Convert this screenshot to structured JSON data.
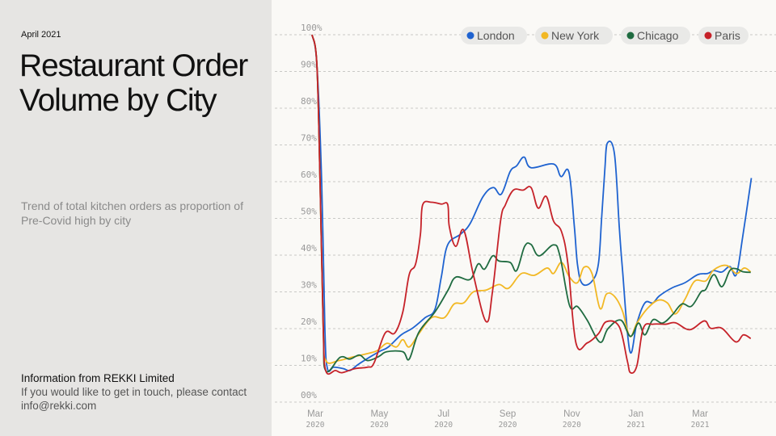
{
  "left": {
    "date": "April 2021",
    "title": "Restaurant Order Volume by City",
    "subtitle": "Trend of total kitchen orders as proportion of Pre-Covid high by city",
    "source": "Information from REKKI Limited",
    "contact": "If you would like to get in touch, please contact info@rekki.com"
  },
  "chart_data": {
    "type": "line",
    "title": "Restaurant Order Volume by City",
    "xlabel": "",
    "ylabel": "",
    "x_units": "months since March 2020",
    "ylim": [
      0,
      100
    ],
    "xlim": [
      -0.1,
      13.6
    ],
    "grid": true,
    "legend_position": "top-right",
    "y_ticks": [
      "00%",
      "10%",
      "20%",
      "30%",
      "40%",
      "50%",
      "60%",
      "70%",
      "80%",
      "90%",
      "100%"
    ],
    "x_ticks": [
      {
        "m": 0,
        "month": "Mar",
        "year": "2020"
      },
      {
        "m": 2,
        "month": "May",
        "year": "2020"
      },
      {
        "m": 4,
        "month": "Jul",
        "year": "2020"
      },
      {
        "m": 6,
        "month": "Sep",
        "year": "2020"
      },
      {
        "m": 8,
        "month": "Nov",
        "year": "2020"
      },
      {
        "m": 10,
        "month": "Jan",
        "year": "2021"
      },
      {
        "m": 12,
        "month": "Mar",
        "year": "2021"
      }
    ],
    "series": [
      {
        "name": "London",
        "color": "#1f63d0",
        "points": [
          [
            -0.1,
            100
          ],
          [
            0.05,
            92
          ],
          [
            0.2,
            60
          ],
          [
            0.3,
            20
          ],
          [
            0.38,
            9.1
          ],
          [
            0.58,
            9.5
          ],
          [
            0.88,
            9.1
          ],
          [
            1.08,
            8.6
          ],
          [
            1.33,
            10.2
          ],
          [
            1.73,
            12.4
          ],
          [
            2.03,
            13.9
          ],
          [
            2.28,
            15
          ],
          [
            2.68,
            18.3
          ],
          [
            3.03,
            20.1
          ],
          [
            3.43,
            23
          ],
          [
            3.73,
            25.2
          ],
          [
            3.93,
            34
          ],
          [
            4.13,
            42.8
          ],
          [
            4.53,
            45.7
          ],
          [
            4.83,
            48.6
          ],
          [
            5.23,
            55.9
          ],
          [
            5.55,
            58.4
          ],
          [
            5.8,
            56.6
          ],
          [
            6.08,
            62.8
          ],
          [
            6.28,
            64.3
          ],
          [
            6.51,
            66.7
          ],
          [
            6.73,
            63.8
          ],
          [
            7.43,
            64.8
          ],
          [
            7.66,
            61.4
          ],
          [
            7.91,
            62.6
          ],
          [
            8.08,
            47.8
          ],
          [
            8.18,
            37.3
          ],
          [
            8.33,
            32.2
          ],
          [
            8.63,
            32.9
          ],
          [
            8.83,
            37.6
          ],
          [
            8.93,
            50
          ],
          [
            9.03,
            63.2
          ],
          [
            9.11,
            70.5
          ],
          [
            9.33,
            67.6
          ],
          [
            9.48,
            47.8
          ],
          [
            9.58,
            36.2
          ],
          [
            9.81,
            13.9
          ],
          [
            10.03,
            21.5
          ],
          [
            10.28,
            27
          ],
          [
            10.53,
            27
          ],
          [
            10.73,
            28.9
          ],
          [
            11.13,
            31.1
          ],
          [
            11.53,
            32.5
          ],
          [
            11.93,
            34.7
          ],
          [
            12.23,
            35
          ],
          [
            12.43,
            35.8
          ],
          [
            12.68,
            35.4
          ],
          [
            12.93,
            36.9
          ],
          [
            13.13,
            34.7
          ],
          [
            13.33,
            45
          ],
          [
            13.6,
            61
          ]
        ]
      },
      {
        "name": "New York",
        "color": "#f2b824",
        "points": [
          [
            -0.1,
            100
          ],
          [
            0.05,
            92
          ],
          [
            0.15,
            60
          ],
          [
            0.25,
            20
          ],
          [
            0.33,
            11.3
          ],
          [
            0.73,
            11.3
          ],
          [
            1.13,
            12.2
          ],
          [
            1.53,
            13
          ],
          [
            1.93,
            14
          ],
          [
            2.23,
            16
          ],
          [
            2.53,
            15
          ],
          [
            2.73,
            17
          ],
          [
            2.93,
            15
          ],
          [
            3.23,
            18.6
          ],
          [
            3.63,
            23
          ],
          [
            4.03,
            23
          ],
          [
            4.33,
            26.7
          ],
          [
            4.63,
            27
          ],
          [
            4.93,
            30
          ],
          [
            5.33,
            30.5
          ],
          [
            5.73,
            32
          ],
          [
            6.03,
            31
          ],
          [
            6.43,
            35
          ],
          [
            6.83,
            34.5
          ],
          [
            7.23,
            36.5
          ],
          [
            7.43,
            35
          ],
          [
            7.68,
            38
          ],
          [
            7.93,
            34
          ],
          [
            8.18,
            32.5
          ],
          [
            8.38,
            36.7
          ],
          [
            8.63,
            35
          ],
          [
            8.88,
            25.5
          ],
          [
            9.08,
            29.4
          ],
          [
            9.33,
            28.8
          ],
          [
            9.58,
            24.8
          ],
          [
            9.81,
            17.9
          ],
          [
            10.03,
            21.5
          ],
          [
            10.33,
            25.2
          ],
          [
            10.68,
            27.7
          ],
          [
            10.98,
            27
          ],
          [
            11.23,
            24
          ],
          [
            11.53,
            28
          ],
          [
            11.83,
            32.9
          ],
          [
            12.18,
            33
          ],
          [
            12.43,
            36
          ],
          [
            12.83,
            37.2
          ],
          [
            13.13,
            35
          ],
          [
            13.38,
            36.5
          ],
          [
            13.58,
            35.4
          ]
        ]
      },
      {
        "name": "Chicago",
        "color": "#1f6b40",
        "points": [
          [
            -0.1,
            100
          ],
          [
            0.05,
            92
          ],
          [
            0.15,
            60
          ],
          [
            0.25,
            20
          ],
          [
            0.33,
            8.5
          ],
          [
            0.78,
            12.2
          ],
          [
            1.08,
            11.7
          ],
          [
            1.38,
            12.8
          ],
          [
            1.63,
            11.3
          ],
          [
            1.98,
            12.4
          ],
          [
            2.23,
            13.7
          ],
          [
            2.73,
            13.7
          ],
          [
            2.93,
            11.7
          ],
          [
            3.23,
            19
          ],
          [
            3.73,
            24.5
          ],
          [
            4.13,
            30.3
          ],
          [
            4.38,
            34
          ],
          [
            4.83,
            33.4
          ],
          [
            5.08,
            37.6
          ],
          [
            5.28,
            36.2
          ],
          [
            5.53,
            39.8
          ],
          [
            5.73,
            38.4
          ],
          [
            6.08,
            38
          ],
          [
            6.28,
            35.8
          ],
          [
            6.53,
            42.4
          ],
          [
            6.73,
            42.9
          ],
          [
            6.98,
            39.8
          ],
          [
            7.43,
            42.8
          ],
          [
            7.63,
            39.8
          ],
          [
            7.93,
            26.3
          ],
          [
            8.18,
            26
          ],
          [
            8.48,
            22.3
          ],
          [
            8.88,
            16.3
          ],
          [
            9.13,
            20
          ],
          [
            9.53,
            22.3
          ],
          [
            9.83,
            17.9
          ],
          [
            10.08,
            21.5
          ],
          [
            10.28,
            18.3
          ],
          [
            10.53,
            22.4
          ],
          [
            10.83,
            21.5
          ],
          [
            11.13,
            23.7
          ],
          [
            11.43,
            26.7
          ],
          [
            11.73,
            26.1
          ],
          [
            12.03,
            30
          ],
          [
            12.18,
            30.7
          ],
          [
            12.43,
            34.7
          ],
          [
            12.68,
            31.4
          ],
          [
            12.93,
            35.8
          ],
          [
            13.13,
            36.3
          ],
          [
            13.33,
            35.5
          ],
          [
            13.58,
            35.3
          ]
        ]
      },
      {
        "name": "Paris",
        "color": "#c62229",
        "points": [
          [
            -0.1,
            100
          ],
          [
            0.05,
            92
          ],
          [
            0.15,
            60
          ],
          [
            0.25,
            20
          ],
          [
            0.33,
            8.5
          ],
          [
            0.63,
            8.6
          ],
          [
            0.83,
            8
          ],
          [
            1.23,
            9.1
          ],
          [
            1.63,
            9.5
          ],
          [
            1.83,
            10.6
          ],
          [
            2.18,
            18.8
          ],
          [
            2.48,
            18.8
          ],
          [
            2.73,
            24.5
          ],
          [
            2.93,
            34.7
          ],
          [
            3.13,
            37.6
          ],
          [
            3.28,
            45.7
          ],
          [
            3.35,
            53.7
          ],
          [
            3.63,
            54.4
          ],
          [
            3.93,
            53.9
          ],
          [
            4.13,
            53.8
          ],
          [
            4.18,
            47.8
          ],
          [
            4.38,
            42.4
          ],
          [
            4.63,
            46.8
          ],
          [
            4.93,
            34.7
          ],
          [
            5.33,
            21.9
          ],
          [
            5.53,
            30.3
          ],
          [
            5.78,
            49.4
          ],
          [
            5.93,
            53.7
          ],
          [
            6.18,
            57.7
          ],
          [
            6.48,
            57.7
          ],
          [
            6.73,
            58.4
          ],
          [
            6.95,
            52.8
          ],
          [
            7.2,
            56
          ],
          [
            7.43,
            49.3
          ],
          [
            7.68,
            46.4
          ],
          [
            7.88,
            37.6
          ],
          [
            8.13,
            16.1
          ],
          [
            8.48,
            16.1
          ],
          [
            8.83,
            18.6
          ],
          [
            9.08,
            21.9
          ],
          [
            9.48,
            20.5
          ],
          [
            9.73,
            11.3
          ],
          [
            9.83,
            8
          ],
          [
            10.03,
            9.9
          ],
          [
            10.23,
            20.1
          ],
          [
            10.53,
            21.2
          ],
          [
            10.93,
            21.2
          ],
          [
            11.23,
            21.6
          ],
          [
            11.68,
            19.7
          ],
          [
            12.13,
            22.1
          ],
          [
            12.33,
            20.1
          ],
          [
            12.68,
            20.1
          ],
          [
            13.11,
            16.4
          ],
          [
            13.35,
            18.3
          ],
          [
            13.58,
            17.3
          ]
        ]
      }
    ]
  }
}
